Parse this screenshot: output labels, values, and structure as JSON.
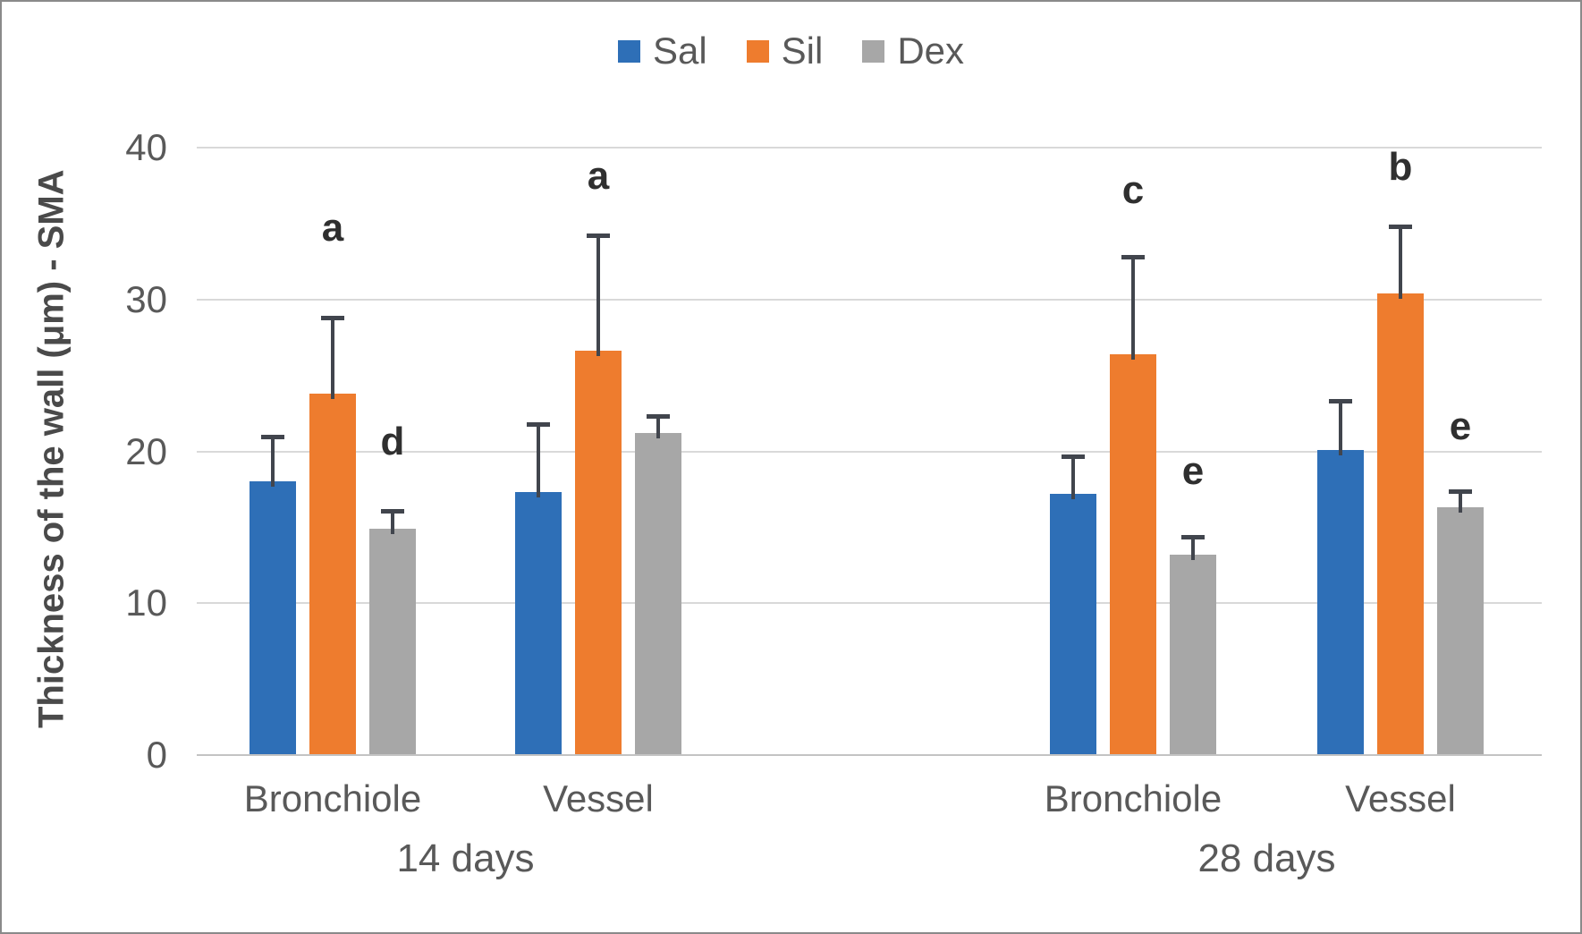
{
  "legend": {
    "position": "top-center",
    "items": [
      {
        "label": "Sal",
        "color": "#2e6fb7"
      },
      {
        "label": "Sil",
        "color": "#ee7c2e"
      },
      {
        "label": "Dex",
        "color": "#a7a7a7"
      }
    ]
  },
  "chart_data": {
    "type": "bar",
    "title": "",
    "xlabel": "",
    "ylabel": "Thickness of the wall (μm) - SMA",
    "ylim": [
      0,
      40
    ],
    "yticks": [
      0,
      10,
      20,
      30,
      40
    ],
    "grid": true,
    "legend_position": "top-center",
    "group_labels": [
      "Bronchiole",
      "Vessel",
      "Bronchiole",
      "Vessel"
    ],
    "day_labels": [
      {
        "text": "14 days",
        "spans_groups": [
          0,
          1
        ]
      },
      {
        "text": "28 days",
        "spans_groups": [
          2,
          3
        ]
      }
    ],
    "series": [
      {
        "name": "Sal",
        "color": "#2e6fb7",
        "values": [
          18.0,
          17.3,
          17.2,
          20.1
        ],
        "errors": [
          3.0,
          4.5,
          2.5,
          3.2
        ]
      },
      {
        "name": "Sil",
        "color": "#ee7c2e",
        "values": [
          23.8,
          26.6,
          26.4,
          30.4
        ],
        "errors": [
          5.0,
          7.6,
          6.4,
          4.4
        ]
      },
      {
        "name": "Dex",
        "color": "#a7a7a7",
        "values": [
          14.9,
          21.2,
          13.2,
          16.3
        ],
        "errors": [
          1.2,
          1.1,
          1.2,
          1.1
        ]
      }
    ],
    "annotations": [
      {
        "text": "a",
        "group": 0,
        "series": "Sil",
        "y": 34.7
      },
      {
        "text": "d",
        "group": 0,
        "series": "Dex",
        "y": 20.6
      },
      {
        "text": "a",
        "group": 1,
        "series": "Sil",
        "y": 38.1
      },
      {
        "text": "c",
        "group": 2,
        "series": "Sil",
        "y": 37.2
      },
      {
        "text": "e",
        "group": 2,
        "series": "Dex",
        "y": 18.7
      },
      {
        "text": "b",
        "group": 3,
        "series": "Sil",
        "y": 38.7
      },
      {
        "text": "e",
        "group": 3,
        "series": "Dex",
        "y": 21.6
      }
    ],
    "colors": {
      "error_bar": "#41454d",
      "gridline": "#d9d9d9",
      "axis_line": "#c3c3c3",
      "tick_label": "#595959",
      "category_label": "#595959",
      "annotation": "#2f2f2f"
    }
  }
}
